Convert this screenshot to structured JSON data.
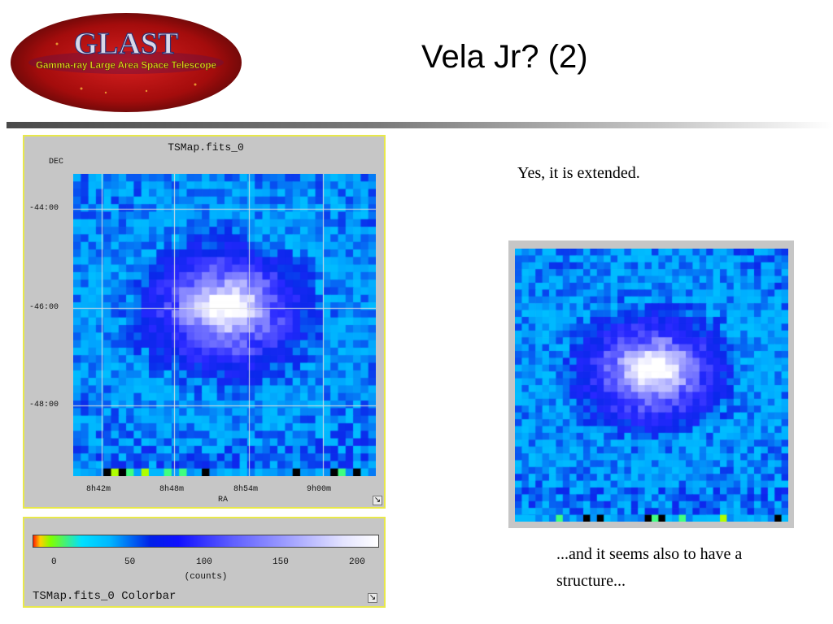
{
  "slide": {
    "title": "Vela Jr? (2)"
  },
  "logo": {
    "wordmark": "GLAST",
    "tagline": "Gamma-ray Large Area Space Telescope",
    "colors": {
      "ellipse": "#b80f0f",
      "wordmark": "#d8d8e8",
      "tagline": "#f0e020"
    }
  },
  "ts_map": {
    "window_title": "TSMap.fits_0",
    "dec_label": "DEC",
    "ra_label": "RA",
    "dec_ticks": [
      "-44:00",
      "-46:00",
      "-48:00"
    ],
    "ra_ticks": [
      "8h42m",
      "8h48m",
      "8h54m",
      "9h00m"
    ]
  },
  "colorbar": {
    "ticks": [
      "0",
      "50",
      "100",
      "150",
      "200"
    ],
    "units": "(counts)",
    "title": "TSMap.fits_0 Colorbar"
  },
  "captions": {
    "top": "Yes, it is extended.",
    "bottom": "...and it seems also to have a structure..."
  },
  "icons": {
    "resize": "resize-corner-icon"
  },
  "colors": {
    "window_border": "#e8e84a",
    "window_bg": "#c6c6c6",
    "grid": "#e0e0e0"
  }
}
